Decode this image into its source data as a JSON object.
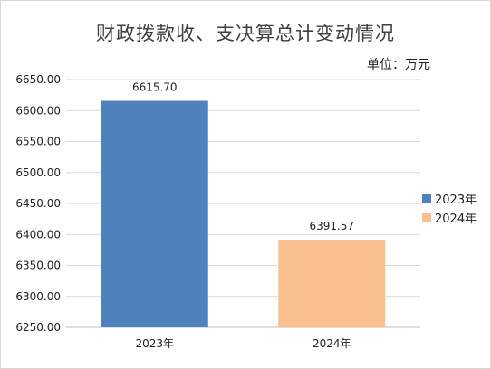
{
  "chart_data": {
    "type": "bar",
    "title": "财政拨款收、支决算总计变动情况",
    "unit_label": "单位：万元",
    "categories": [
      "2023年",
      "2024年"
    ],
    "values": [
      6615.7,
      6391.57
    ],
    "value_labels": [
      "6615.70",
      "6391.57"
    ],
    "colors": [
      "#4f81bd",
      "#fac090"
    ],
    "legend": [
      {
        "name": "2023年",
        "color": "#4f81bd"
      },
      {
        "name": "2024年",
        "color": "#fac090"
      }
    ],
    "legend_position": "right",
    "ylim": [
      6250,
      6650
    ],
    "yticks": [
      6250,
      6300,
      6350,
      6400,
      6450,
      6500,
      6550,
      6600,
      6650
    ],
    "ytick_labels": [
      "6250.00",
      "6300.00",
      "6350.00",
      "6400.00",
      "6450.00",
      "6500.00",
      "6550.00",
      "6600.00",
      "6650.00"
    ],
    "grid": true
  }
}
